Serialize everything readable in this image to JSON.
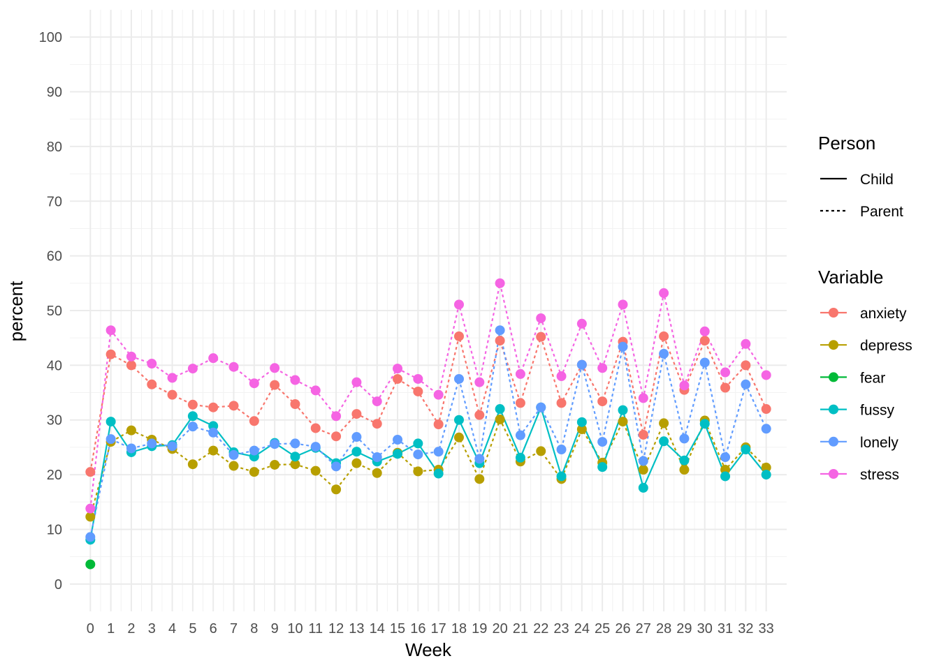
{
  "chart_data": {
    "type": "line",
    "xlabel": "Week",
    "ylabel": "percent",
    "x": [
      0,
      1,
      2,
      3,
      4,
      5,
      6,
      7,
      8,
      9,
      10,
      11,
      12,
      13,
      14,
      15,
      16,
      17,
      18,
      19,
      20,
      21,
      22,
      23,
      24,
      25,
      26,
      27,
      28,
      29,
      30,
      31,
      32,
      33
    ],
    "xlim": [
      -1,
      34
    ],
    "ylim": [
      -5,
      105
    ],
    "y_ticks": [
      0,
      10,
      20,
      30,
      40,
      50,
      60,
      70,
      80,
      90,
      100
    ],
    "grid": true,
    "legends": [
      {
        "title": "Person",
        "position": "right",
        "entries": [
          {
            "label": "Child",
            "linetype": "solid"
          },
          {
            "label": "Parent",
            "linetype": "dashed"
          }
        ]
      },
      {
        "title": "Variable",
        "position": "right",
        "entries": [
          {
            "label": "anxiety",
            "color": "#F8766D"
          },
          {
            "label": "depress",
            "color": "#B79F00"
          },
          {
            "label": "fear",
            "color": "#00BA38"
          },
          {
            "label": "fussy",
            "color": "#00BFC4"
          },
          {
            "label": "lonely",
            "color": "#619CFF"
          },
          {
            "label": "stress",
            "color": "#F564E3"
          }
        ]
      }
    ],
    "series": [
      {
        "variable": "anxiety",
        "person": "Parent",
        "color": "#F8766D",
        "values": [
          20.5,
          42.0,
          40.0,
          36.5,
          34.6,
          32.8,
          32.3,
          32.6,
          29.8,
          36.4,
          32.9,
          28.5,
          27.0,
          31.1,
          29.3,
          37.5,
          35.2,
          29.2,
          45.3,
          30.9,
          44.5,
          33.1,
          45.2,
          33.1,
          40.1,
          33.4,
          44.3,
          27.3,
          45.3,
          35.5,
          44.5,
          35.9,
          40.0,
          32.0
        ]
      },
      {
        "variable": "depress",
        "person": "Parent",
        "color": "#B79F00",
        "values": [
          12.3,
          26.0,
          28.1,
          26.4,
          24.7,
          21.9,
          24.4,
          21.6,
          20.5,
          21.8,
          21.9,
          20.7,
          17.3,
          22.1,
          20.3,
          24.0,
          20.6,
          20.9,
          26.8,
          19.2,
          30.1,
          22.4,
          24.3,
          19.2,
          28.3,
          22.2,
          29.7,
          20.9,
          29.4,
          20.9,
          29.9,
          20.9,
          25.0,
          21.3
        ]
      },
      {
        "variable": "fear",
        "person": "Child",
        "color": "#00BA38",
        "values": [
          3.6,
          null,
          null,
          null,
          null,
          null,
          null,
          null,
          null,
          null,
          null,
          null,
          null,
          null,
          null,
          null,
          null,
          null,
          null,
          null,
          null,
          null,
          null,
          null,
          null,
          null,
          null,
          null,
          null,
          null,
          null,
          null,
          null,
          null
        ]
      },
      {
        "variable": "fussy",
        "person": "Child",
        "color": "#00BFC4",
        "values": [
          8.1,
          29.7,
          24.1,
          25.2,
          25.4,
          30.7,
          28.9,
          24.1,
          23.3,
          25.8,
          23.3,
          24.9,
          22.1,
          24.2,
          22.4,
          23.8,
          25.7,
          20.2,
          30.0,
          22.1,
          32.0,
          23.1,
          32.3,
          19.7,
          29.6,
          21.4,
          31.8,
          17.6,
          26.1,
          22.6,
          29.3,
          19.7,
          24.6,
          20.0
        ]
      },
      {
        "variable": "lonely",
        "person": "Parent",
        "color": "#619CFF",
        "values": [
          8.6,
          26.5,
          24.8,
          25.7,
          25.2,
          28.8,
          27.7,
          23.6,
          24.4,
          25.6,
          25.7,
          25.1,
          21.5,
          26.9,
          23.2,
          26.4,
          23.7,
          24.2,
          37.5,
          22.9,
          46.4,
          27.2,
          32.3,
          24.6,
          40.1,
          26.0,
          43.4,
          22.5,
          42.1,
          26.6,
          40.5,
          23.2,
          36.5,
          28.4
        ]
      },
      {
        "variable": "stress",
        "person": "Parent",
        "color": "#F564E3",
        "values": [
          13.8,
          46.4,
          41.6,
          40.3,
          37.7,
          39.4,
          41.3,
          39.7,
          36.7,
          39.5,
          37.3,
          35.4,
          30.7,
          36.9,
          33.4,
          39.4,
          37.5,
          34.6,
          51.1,
          36.9,
          55.0,
          38.4,
          48.6,
          38.0,
          47.6,
          39.5,
          51.1,
          34.0,
          53.2,
          36.3,
          46.2,
          38.7,
          43.9,
          38.2
        ]
      }
    ]
  }
}
